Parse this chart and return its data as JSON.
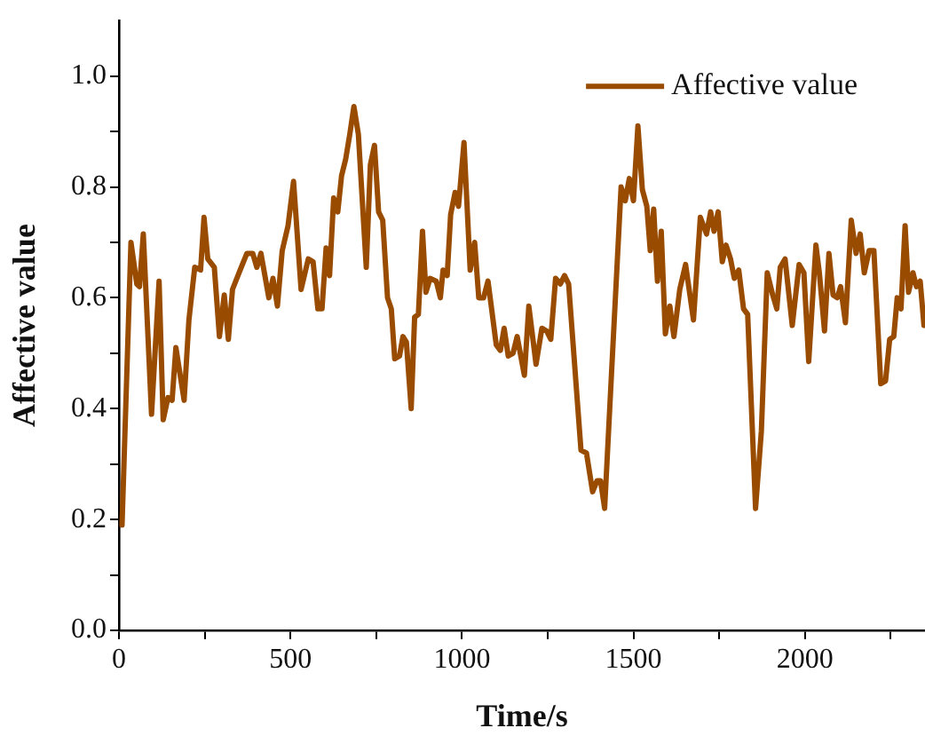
{
  "chart_data": {
    "type": "line",
    "xlabel": "Time/s",
    "ylabel": "Affective value",
    "xlim": [
      0,
      2350
    ],
    "ylim": [
      0,
      1.1
    ],
    "xticks": [
      0,
      {
        "value": 250,
        "label": null
      },
      500,
      {
        "value": 750,
        "label": null
      },
      1000,
      {
        "value": 1250,
        "label": null
      },
      1500,
      {
        "value": 1750,
        "label": null
      },
      2000,
      {
        "value": 2250,
        "label": null
      }
    ],
    "yticks": [
      {
        "value": 0,
        "label": "0.0"
      },
      {
        "value": 0.1,
        "label": null
      },
      0.2,
      {
        "value": 0.3,
        "label": null
      },
      0.4,
      {
        "value": 0.5,
        "label": null
      },
      0.6,
      {
        "value": 0.7,
        "label": null
      },
      0.8,
      {
        "value": 0.9,
        "label": null
      },
      {
        "value": 1,
        "label": "1.0"
      }
    ],
    "grid": false,
    "legend": "top right",
    "marker": "none",
    "line_style": "solid",
    "series": [
      {
        "name": "Affective value",
        "color": "#994c00",
        "x": [
          9,
          35,
          52,
          60,
          71,
          95,
          117,
          129,
          143,
          155,
          166,
          190,
          204,
          221,
          238,
          248,
          259,
          278,
          293,
          307,
          319,
          331,
          350,
          373,
          390,
          402,
          414,
          437,
          449,
          462,
          476,
          493,
          509,
          531,
          552,
          566,
          580,
          592,
          604,
          614,
          626,
          638,
          649,
          661,
          673,
          685,
          698,
          721,
          733,
          745,
          757,
          769,
          783,
          794,
          804,
          818,
          828,
          838,
          852,
          862,
          873,
          885,
          895,
          907,
          925,
          937,
          945,
          957,
          967,
          980,
          990,
          1006,
          1024,
          1037,
          1049,
          1063,
          1076,
          1100,
          1112,
          1123,
          1135,
          1149,
          1161,
          1182,
          1195,
          1216,
          1233,
          1247,
          1259,
          1273,
          1287,
          1299,
          1311,
          1347,
          1363,
          1381,
          1394,
          1404,
          1416,
          1437,
          1464,
          1476,
          1488,
          1500,
          1513,
          1526,
          1539,
          1549,
          1559,
          1570,
          1581,
          1593,
          1606,
          1618,
          1635,
          1652,
          1675,
          1695,
          1713,
          1725,
          1735,
          1747,
          1759,
          1770,
          1783,
          1794,
          1807,
          1821,
          1833,
          1856,
          1873,
          1890,
          1906,
          1918,
          1928,
          1942,
          1963,
          1983,
          1997,
          2011,
          2032,
          2042,
          2057,
          2070,
          2082,
          2094,
          2104,
          2118,
          2135,
          2149,
          2161,
          2173,
          2187,
          2201,
          2221,
          2235,
          2247,
          2259,
          2269,
          2280,
          2292,
          2302,
          2315,
          2325,
          2336,
          2347
        ],
        "values": [
          0.19,
          0.7,
          0.625,
          0.62,
          0.715,
          0.39,
          0.63,
          0.38,
          0.42,
          0.415,
          0.51,
          0.415,
          0.56,
          0.655,
          0.65,
          0.745,
          0.67,
          0.655,
          0.53,
          0.605,
          0.525,
          0.615,
          0.645,
          0.68,
          0.68,
          0.655,
          0.68,
          0.6,
          0.635,
          0.585,
          0.685,
          0.73,
          0.81,
          0.615,
          0.67,
          0.665,
          0.58,
          0.58,
          0.69,
          0.64,
          0.78,
          0.755,
          0.82,
          0.85,
          0.895,
          0.945,
          0.895,
          0.655,
          0.84,
          0.875,
          0.755,
          0.74,
          0.6,
          0.58,
          0.49,
          0.495,
          0.53,
          0.52,
          0.4,
          0.565,
          0.57,
          0.72,
          0.61,
          0.635,
          0.63,
          0.6,
          0.65,
          0.64,
          0.75,
          0.79,
          0.765,
          0.88,
          0.65,
          0.7,
          0.6,
          0.6,
          0.63,
          0.515,
          0.505,
          0.545,
          0.495,
          0.5,
          0.53,
          0.46,
          0.585,
          0.48,
          0.545,
          0.54,
          0.525,
          0.635,
          0.625,
          0.64,
          0.625,
          0.325,
          0.32,
          0.25,
          0.27,
          0.27,
          0.22,
          0.475,
          0.8,
          0.775,
          0.815,
          0.775,
          0.91,
          0.795,
          0.765,
          0.685,
          0.76,
          0.63,
          0.72,
          0.535,
          0.585,
          0.53,
          0.615,
          0.66,
          0.56,
          0.745,
          0.715,
          0.755,
          0.72,
          0.755,
          0.665,
          0.695,
          0.67,
          0.635,
          0.65,
          0.58,
          0.57,
          0.22,
          0.36,
          0.645,
          0.605,
          0.58,
          0.655,
          0.67,
          0.55,
          0.66,
          0.645,
          0.485,
          0.695,
          0.645,
          0.54,
          0.68,
          0.605,
          0.6,
          0.62,
          0.555,
          0.74,
          0.68,
          0.715,
          0.645,
          0.685,
          0.685,
          0.445,
          0.45,
          0.525,
          0.53,
          0.6,
          0.58,
          0.73,
          0.61,
          0.645,
          0.62,
          0.63,
          0.55
        ]
      }
    ]
  }
}
